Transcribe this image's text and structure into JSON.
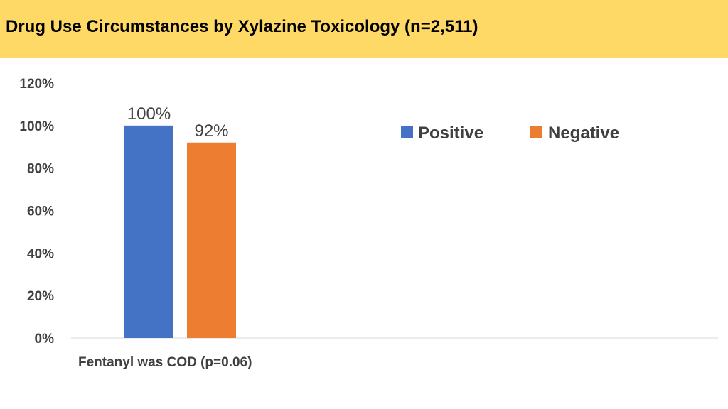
{
  "title": "Drug Use Circumstances by Xylazine Toxicology (n=2,511)",
  "colors": {
    "header_bg": "#ffd966",
    "positive": "#4472c4",
    "negative": "#ed7d31",
    "text": "#404040",
    "axis": "#d9d9d9"
  },
  "chart_data": {
    "type": "bar",
    "categories": [
      "Fentanyl was COD (p=0.06)"
    ],
    "series": [
      {
        "name": "Positive",
        "values": [
          100
        ],
        "labels": [
          "100%"
        ]
      },
      {
        "name": "Negative",
        "values": [
          92
        ],
        "labels": [
          "92%"
        ]
      }
    ],
    "ylim": [
      0,
      120
    ],
    "yticks": [
      0,
      20,
      40,
      60,
      80,
      100,
      120
    ],
    "ytick_labels": [
      "0%",
      "20%",
      "40%",
      "60%",
      "80%",
      "100%",
      "120%"
    ],
    "grid": false,
    "legend_position": "top-right"
  }
}
